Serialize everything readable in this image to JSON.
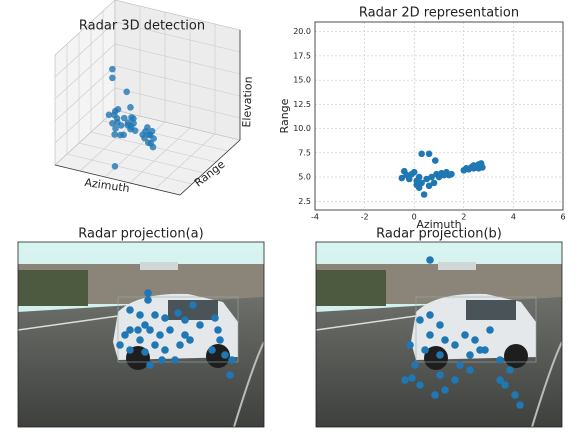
{
  "chart_data": [
    {
      "type": "scatter3d",
      "title": "Radar 3D detection",
      "xlabel": "Azimuth",
      "ylabel": "Range",
      "zlabel": "Elevation",
      "color": "#1f77b4",
      "xlim": [
        -4,
        6
      ],
      "ylim": [
        1.6,
        21
      ],
      "zlim": [
        0,
        3
      ],
      "x": [
        -0.4,
        -0.3,
        -0.5,
        -0.2,
        0,
        0.1,
        0.1,
        0.2,
        0.3,
        0.4,
        0.3,
        0.6,
        0.5,
        0.7,
        0.8,
        0.85,
        0.9,
        1.0,
        1.1,
        1.2,
        1.3,
        1.4,
        1.5,
        0.6,
        0.2,
        -0.1,
        2.0,
        2.1,
        2.2,
        2.3,
        2.4,
        2.5,
        2.6,
        2.7,
        2.75,
        2.6,
        2.4
      ],
      "y": [
        5.6,
        5.2,
        4.9,
        4.8,
        5.5,
        4.6,
        4.2,
        3.9,
        4.4,
        3.2,
        7.4,
        7.4,
        4.8,
        5.0,
        4.4,
        6.7,
        5.3,
        5.0,
        5.4,
        5.2,
        5.5,
        5.2,
        5.3,
        4.1,
        5.0,
        5.3,
        5.7,
        5.9,
        5.8,
        6.0,
        5.9,
        6.1,
        6.3,
        6.4,
        6.0,
        5.9,
        6.2
      ],
      "z": [
        2.6,
        2.4,
        1.4,
        1.2,
        1.3,
        1.1,
        1.5,
        1.0,
        1.3,
        0.2,
        1.9,
        1.5,
        1.2,
        1.4,
        1.0,
        1.3,
        1.2,
        1.3,
        1.1,
        1.2,
        1.4,
        1.3,
        1.1,
        1.0,
        1.6,
        1.5,
        1.0,
        0.9,
        1.1,
        1.2,
        0.8,
        1.0,
        1.1,
        0.9,
        0.7,
        0.8,
        1.0
      ]
    },
    {
      "type": "scatter",
      "title": "Radar 2D representation",
      "xlabel": "Azimuth",
      "ylabel": "Range",
      "color": "#1f77b4",
      "grid": true,
      "xlim": [
        -4,
        6
      ],
      "ylim": [
        1.6,
        21
      ],
      "xticks": [
        -4,
        -2,
        0,
        2,
        4,
        6
      ],
      "yticks": [
        2.5,
        {
          "value": 5,
          "label": "5.0"
        },
        7.5,
        {
          "value": 10,
          "label": "10.0"
        },
        12.5,
        {
          "value": 15,
          "label": "15.0"
        },
        17.5,
        {
          "value": 20,
          "label": "20.0"
        }
      ],
      "x": [
        -0.4,
        -0.3,
        -0.5,
        -0.2,
        0,
        0.1,
        0.1,
        0.2,
        0.3,
        0.4,
        0.3,
        0.6,
        0.5,
        0.7,
        0.8,
        0.85,
        0.9,
        1.0,
        1.1,
        1.2,
        1.3,
        1.4,
        1.5,
        0.6,
        0.2,
        -0.1,
        2.0,
        2.1,
        2.2,
        2.3,
        2.4,
        2.5,
        2.6,
        2.7,
        2.75,
        2.6,
        2.4
      ],
      "y": [
        5.6,
        5.2,
        4.9,
        4.8,
        5.5,
        4.6,
        4.2,
        3.9,
        4.4,
        3.2,
        7.4,
        7.4,
        4.8,
        5.0,
        4.4,
        6.7,
        5.3,
        5.0,
        5.4,
        5.2,
        5.5,
        5.2,
        5.3,
        4.1,
        5.0,
        5.3,
        5.7,
        5.9,
        5.8,
        6.0,
        5.9,
        6.1,
        6.3,
        6.4,
        6.0,
        5.9,
        6.2
      ]
    },
    {
      "type": "image_scatter",
      "title": "Radar projection(a)",
      "color": "#1f77b4",
      "xlim": [
        0,
        246
      ],
      "ylim": [
        185,
        0
      ],
      "x": [
        130,
        130,
        112,
        122,
        137,
        147,
        160,
        167,
        127,
        132,
        112,
        107,
        142,
        152,
        167,
        122,
        137,
        102,
        112,
        127,
        147,
        162,
        172,
        197,
        200,
        202,
        194,
        207,
        214,
        212,
        144,
        157,
        132,
        120,
        175,
        182
      ],
      "y": [
        51,
        58,
        68,
        73,
        73,
        76,
        71,
        78,
        83,
        88,
        88,
        93,
        93,
        88,
        93,
        98,
        103,
        103,
        108,
        110,
        108,
        103,
        98,
        76,
        88,
        98,
        108,
        113,
        118,
        133,
        118,
        118,
        123,
        88,
        63,
        83
      ]
    },
    {
      "type": "image_scatter",
      "title": "Radar projection(b)",
      "color": "#1f77b4",
      "xlim": [
        0,
        246
      ],
      "ylim": [
        185,
        0
      ],
      "x": [
        114,
        104,
        114,
        124,
        114,
        129,
        139,
        149,
        159,
        164,
        154,
        124,
        109,
        94,
        99,
        89,
        104,
        124,
        129,
        139,
        144,
        154,
        169,
        174,
        184,
        194,
        189,
        199,
        204,
        184,
        119,
        96
      ],
      "y": [
        18,
        78,
        73,
        83,
        93,
        98,
        103,
        93,
        98,
        108,
        113,
        113,
        108,
        103,
        123,
        138,
        143,
        133,
        148,
        138,
        123,
        128,
        108,
        88,
        118,
        128,
        143,
        153,
        163,
        138,
        153,
        136
      ]
    }
  ]
}
